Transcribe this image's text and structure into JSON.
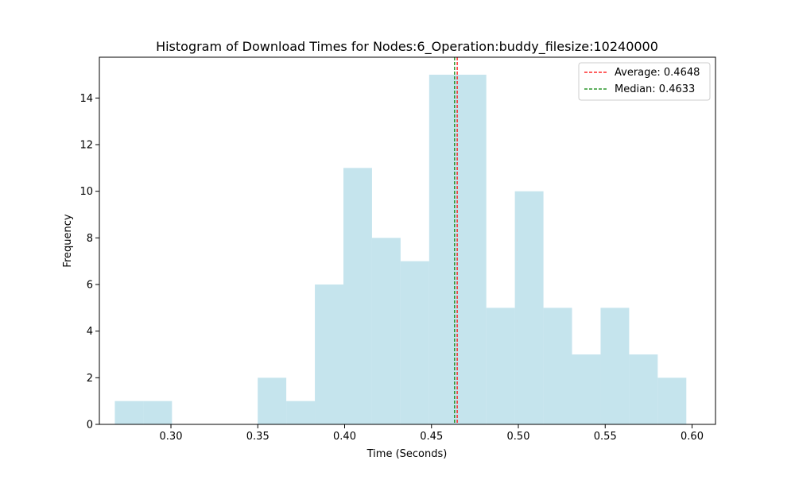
{
  "chart_data": {
    "type": "bar",
    "title": "Histogram of Download Times for Nodes:6_Operation:buddy_filesize:10240000",
    "xlabel": "Time (Seconds)",
    "ylabel": "Frequency",
    "xlim": [
      0.2588,
      0.6135
    ],
    "ylim": [
      0,
      15.75
    ],
    "xticks": [
      0.3,
      0.35,
      0.4,
      0.45,
      0.5,
      0.55,
      0.6
    ],
    "xtick_labels": [
      "0.30",
      "0.35",
      "0.40",
      "0.45",
      "0.50",
      "0.55",
      "0.60"
    ],
    "yticks": [
      0,
      2,
      4,
      6,
      8,
      10,
      12,
      14
    ],
    "ytick_labels": [
      "0",
      "2",
      "4",
      "6",
      "8",
      "10",
      "12",
      "14"
    ],
    "grid": false,
    "bins": {
      "start": 0.2677,
      "width": 0.01645,
      "counts": [
        1,
        1,
        0,
        0,
        0,
        2,
        1,
        6,
        11,
        8,
        7,
        15,
        15,
        5,
        10,
        5,
        3,
        5,
        3,
        2
      ]
    },
    "bar_color": "#add8e6",
    "bar_alpha": 0.7,
    "reference_lines": [
      {
        "label": "Average: 0.4648",
        "x": 0.4648,
        "color": "#ff0000",
        "style": "dashed"
      },
      {
        "label": "Median: 0.4633",
        "x": 0.4633,
        "color": "#008000",
        "style": "dashed"
      }
    ],
    "legend": {
      "position": "top-right"
    }
  }
}
